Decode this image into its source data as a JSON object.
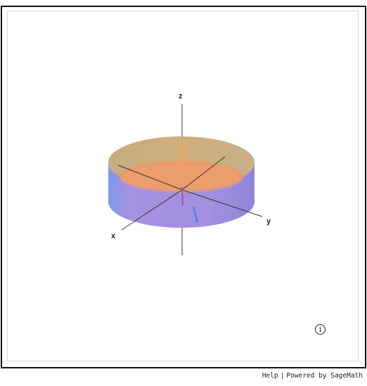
{
  "viewer": {
    "axes": {
      "x_label": "x",
      "y_label": "y",
      "z_label": "z"
    },
    "info_icon": "info-circle-icon",
    "info_glyph": "i"
  },
  "footer": {
    "help_label": "Help",
    "separator": "|",
    "powered_label": "Powered by SageMath"
  },
  "colors": {
    "cylinder_top": "#c9a774",
    "cylinder_side": "#a08fe0",
    "cylinder_side_edge": "#7f98e8",
    "inner_disk": "#ea9a6a",
    "vector_orange": "#f2a33a",
    "vector_blue": "#4a7de0",
    "vector_magenta": "#b44bb0"
  }
}
